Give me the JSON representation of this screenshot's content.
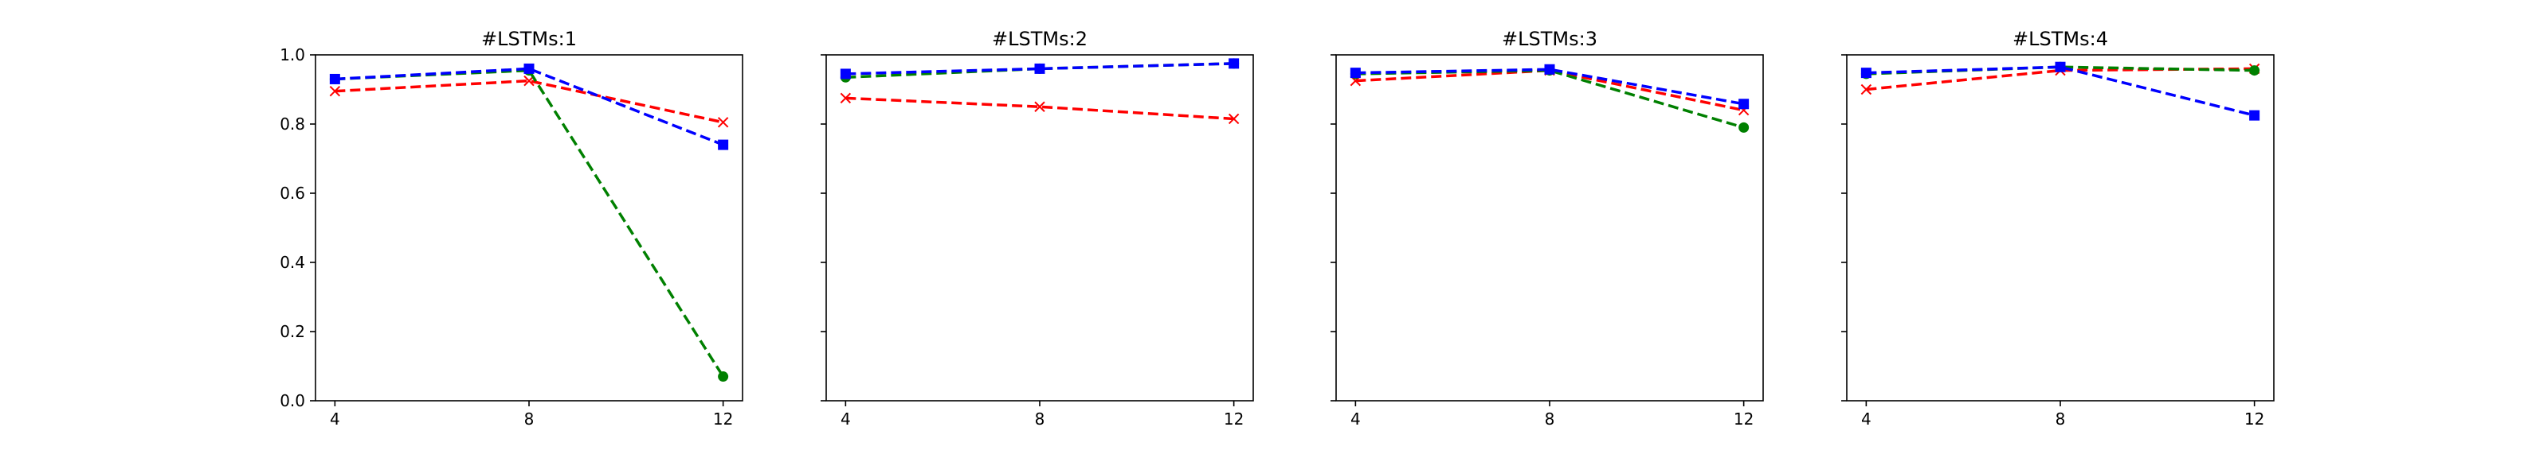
{
  "chart_data": [
    {
      "type": "line",
      "title": "#LSTMs:1",
      "x": [
        4,
        8,
        12
      ],
      "xticks": [
        "4",
        "8",
        "12"
      ],
      "ylim": [
        0,
        1.0
      ],
      "yticks": [
        "0.0",
        "0.2",
        "0.4",
        "0.6",
        "0.8",
        "1.0"
      ],
      "show_yticklabels": true,
      "grid": false,
      "series": [
        {
          "color": "#ff0000",
          "marker": "x",
          "values": [
            0.895,
            0.925,
            0.805
          ]
        },
        {
          "color": "#008000",
          "marker": "o",
          "values": [
            0.93,
            0.955,
            0.07
          ]
        },
        {
          "color": "#0000ff",
          "marker": "s",
          "values": [
            0.93,
            0.96,
            0.74
          ]
        }
      ]
    },
    {
      "type": "line",
      "title": "#LSTMs:2",
      "x": [
        4,
        8,
        12
      ],
      "xticks": [
        "4",
        "8",
        "12"
      ],
      "ylim": [
        0,
        1.0
      ],
      "yticks": [
        "0.0",
        "0.2",
        "0.4",
        "0.6",
        "0.8",
        "1.0"
      ],
      "show_yticklabels": false,
      "grid": false,
      "series": [
        {
          "color": "#ff0000",
          "marker": "x",
          "values": [
            0.875,
            0.85,
            0.815
          ]
        },
        {
          "color": "#008000",
          "marker": "o",
          "values": [
            0.935,
            0.96,
            0.975
          ]
        },
        {
          "color": "#0000ff",
          "marker": "s",
          "values": [
            0.945,
            0.96,
            0.975
          ]
        }
      ]
    },
    {
      "type": "line",
      "title": "#LSTMs:3",
      "x": [
        4,
        8,
        12
      ],
      "xticks": [
        "4",
        "8",
        "12"
      ],
      "ylim": [
        0,
        1.0
      ],
      "yticks": [
        "0.0",
        "0.2",
        "0.4",
        "0.6",
        "0.8",
        "1.0"
      ],
      "show_yticklabels": false,
      "grid": false,
      "series": [
        {
          "color": "#ff0000",
          "marker": "x",
          "values": [
            0.925,
            0.955,
            0.84
          ]
        },
        {
          "color": "#008000",
          "marker": "o",
          "values": [
            0.945,
            0.955,
            0.79
          ]
        },
        {
          "color": "#0000ff",
          "marker": "s",
          "values": [
            0.948,
            0.958,
            0.858
          ]
        }
      ]
    },
    {
      "type": "line",
      "title": "#LSTMs:4",
      "x": [
        4,
        8,
        12
      ],
      "xticks": [
        "4",
        "8",
        "12"
      ],
      "ylim": [
        0,
        1.0
      ],
      "yticks": [
        "0.0",
        "0.2",
        "0.4",
        "0.6",
        "0.8",
        "1.0"
      ],
      "show_yticklabels": false,
      "grid": false,
      "series": [
        {
          "color": "#ff0000",
          "marker": "x",
          "values": [
            0.9,
            0.955,
            0.96
          ]
        },
        {
          "color": "#008000",
          "marker": "o",
          "values": [
            0.945,
            0.965,
            0.955
          ]
        },
        {
          "color": "#0000ff",
          "marker": "s",
          "values": [
            0.948,
            0.965,
            0.825
          ]
        }
      ]
    }
  ]
}
